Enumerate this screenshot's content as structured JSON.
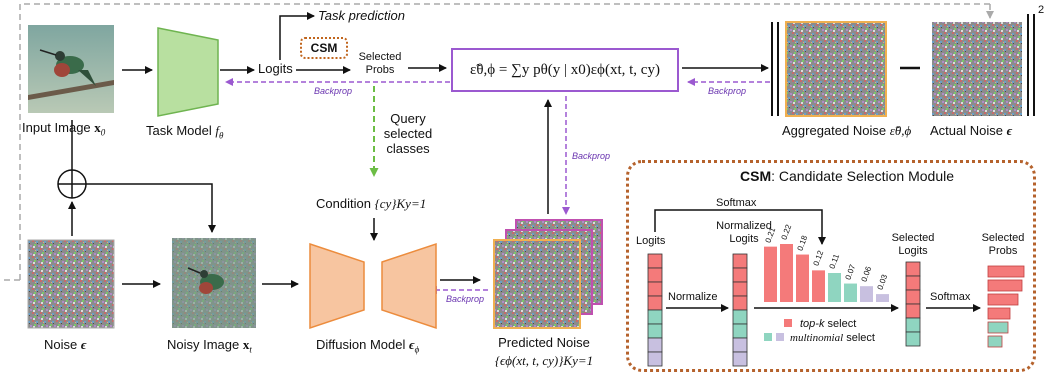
{
  "pipeline": {
    "input_image_label": "Input Image",
    "input_image_math": "x",
    "input_image_sub": "0",
    "task_model_label": "Task Model",
    "task_model_math": "f",
    "task_model_sub": "θ",
    "task_prediction_label": "Task prediction",
    "logits_label": "Logits",
    "csm_badge": "CSM",
    "selected_probs_label": "Selected\nProbs",
    "formula_text": "ε̃θ,ϕ = ∑y pθ(y | x0)εϕ(xt, t, cy)",
    "backprop_label": "Backprop",
    "query_label": "Query\nselected\nclasses",
    "condition_label": "Condition",
    "condition_math": "{cy}Ky=1",
    "noise_label": "Noise",
    "noise_math": "ϵ",
    "noisy_image_label": "Noisy Image",
    "noisy_image_math": "x",
    "noisy_image_sub": "t",
    "diffusion_label": "Diffusion Model",
    "diffusion_math": "ϵ",
    "diffusion_sub": "ϕ",
    "predicted_noise_label": "Predicted Noise",
    "predicted_noise_math": "{ϵϕ(xt, t, cy)}Ky=1",
    "aggregated_noise_label": "Aggregated Noise",
    "aggregated_noise_math": "ε̃θ,ϕ",
    "actual_noise_label": "Actual Noise",
    "actual_noise_math": "ϵ",
    "norm_exponent": "2"
  },
  "csm": {
    "title_bold": "CSM",
    "title_rest": ": Candidate Selection Module",
    "softmax_top": "Softmax",
    "logits_label": "Logits",
    "normalized_logits_label": "Normalized\nLogits",
    "normalize_label": "Normalize",
    "selected_logits_label": "Selected\nLogits",
    "softmax_label": "Softmax",
    "selected_probs_label": "Selected\nProbs",
    "bar_values": [
      "0.21",
      "0.22",
      "0.18",
      "0.12",
      "0.11",
      "0.07",
      "0.06",
      "0.03"
    ],
    "legend_topk": "top-k",
    "legend_topk_rest": " select",
    "legend_multi": "multinomial",
    "legend_multi_rest": " select"
  },
  "colors": {
    "topk": "#f47a7a",
    "multinomial": "#8fd5c0",
    "rest": "#c8c0e0",
    "task_model": "#b8e0a0",
    "diffusion": "#f7c5a0",
    "purple": "#9b59d0",
    "orange_dots": "#b5622c",
    "green_arrow": "#6cbd45"
  }
}
